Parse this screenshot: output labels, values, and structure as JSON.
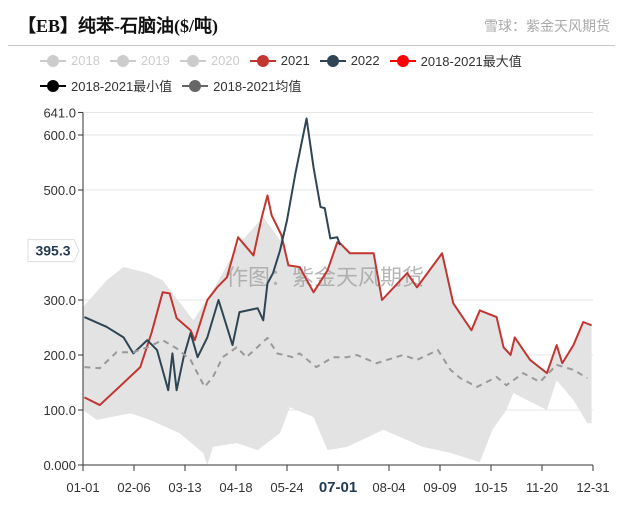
{
  "title": "【EB】纯苯-石脑油($/吨)",
  "legend": [
    {
      "label": "2018",
      "color": "#cccccc",
      "off": true
    },
    {
      "label": "2019",
      "color": "#cccccc",
      "off": true
    },
    {
      "label": "2020",
      "color": "#cccccc",
      "off": true
    },
    {
      "label": "2021",
      "color": "#c23531",
      "off": false
    },
    {
      "label": "2022",
      "color": "#2f4554",
      "off": false
    },
    {
      "label": "2018-2021最大值",
      "color": "#ff0000",
      "off": false
    },
    {
      "label": "2018-2021最小值",
      "color": "#000000",
      "off": false
    },
    {
      "label": "2018-2021均值",
      "color": "#666666",
      "off": false
    }
  ],
  "watermark": "作图：紫金天风期货",
  "corner_watermark": "雪球：紫金天风期货",
  "chart_data": {
    "type": "line",
    "title": "【EB】纯苯-石脑油($/吨)",
    "ylim": [
      0,
      641
    ],
    "y_ticks": [
      "0.000",
      "100.0",
      "200.0",
      "300.0",
      "500.0",
      "600.0",
      "641.0"
    ],
    "y_tick_values": [
      0,
      100,
      200,
      300,
      500,
      600,
      641
    ],
    "x_ticks": [
      "01-01",
      "02-06",
      "03-13",
      "04-18",
      "05-24",
      "07-01",
      "08-04",
      "09-09",
      "10-15",
      "11-20",
      "12-31"
    ],
    "highlight_x_tick": "07-01",
    "axis_pointer_value": "395.3",
    "grid": true,
    "legend_position": "top",
    "series": [
      {
        "name": "2021",
        "color": "#c23531",
        "points": [
          [
            1,
            123
          ],
          [
            12,
            109
          ],
          [
            26,
            142
          ],
          [
            41,
            178
          ],
          [
            49,
            240
          ],
          [
            57,
            314
          ],
          [
            62,
            312
          ],
          [
            67,
            267
          ],
          [
            77,
            245
          ],
          [
            80,
            227
          ],
          [
            89,
            300
          ],
          [
            96,
            323
          ],
          [
            103,
            341
          ],
          [
            111,
            414
          ],
          [
            122,
            381
          ],
          [
            128,
            451
          ],
          [
            132,
            490
          ],
          [
            135,
            454
          ],
          [
            142,
            418
          ],
          [
            147,
            363
          ],
          [
            155,
            360
          ],
          [
            165,
            314
          ],
          [
            175,
            354
          ],
          [
            182,
            405
          ],
          [
            191,
            385
          ],
          [
            184,
            403
          ],
          [
            208,
            385
          ],
          [
            214,
            300
          ],
          [
            232,
            349
          ],
          [
            239,
            323
          ],
          [
            257,
            385
          ],
          [
            265,
            294
          ],
          [
            278,
            245
          ],
          [
            284,
            281
          ],
          [
            296,
            269
          ],
          [
            301,
            214
          ],
          [
            306,
            200
          ],
          [
            309,
            232
          ],
          [
            320,
            191
          ],
          [
            332,
            167
          ],
          [
            339,
            218
          ],
          [
            343,
            185
          ],
          [
            351,
            218
          ],
          [
            358,
            260
          ],
          [
            364,
            254
          ]
        ]
      },
      {
        "name": "2022",
        "color": "#2f4554",
        "points": [
          [
            1,
            269
          ],
          [
            17,
            251
          ],
          [
            29,
            232
          ],
          [
            36,
            203
          ],
          [
            46,
            227
          ],
          [
            53,
            209
          ],
          [
            61,
            136
          ],
          [
            64,
            203
          ],
          [
            67,
            136
          ],
          [
            72,
            196
          ],
          [
            77,
            240
          ],
          [
            82,
            196
          ],
          [
            89,
            232
          ],
          [
            97,
            300
          ],
          [
            103,
            251
          ],
          [
            107,
            218
          ],
          [
            112,
            278
          ],
          [
            125,
            285
          ],
          [
            129,
            263
          ],
          [
            132,
            330
          ],
          [
            136,
            349
          ],
          [
            141,
            390
          ],
          [
            146,
            445
          ],
          [
            152,
            530
          ],
          [
            160,
            630
          ],
          [
            165,
            541
          ],
          [
            170,
            469
          ],
          [
            173,
            467
          ],
          [
            177,
            412
          ],
          [
            182,
            414
          ],
          [
            184,
            400
          ]
        ]
      },
      {
        "name": "2018-2021均值",
        "color": "#999999",
        "dashed": true,
        "points": [
          [
            1,
            178
          ],
          [
            12,
            176
          ],
          [
            24,
            205
          ],
          [
            36,
            205
          ],
          [
            46,
            214
          ],
          [
            57,
            227
          ],
          [
            67,
            212
          ],
          [
            77,
            191
          ],
          [
            87,
            142
          ],
          [
            93,
            160
          ],
          [
            100,
            196
          ],
          [
            110,
            214
          ],
          [
            117,
            196
          ],
          [
            132,
            231
          ],
          [
            139,
            203
          ],
          [
            150,
            196
          ],
          [
            155,
            203
          ],
          [
            167,
            178
          ],
          [
            179,
            196
          ],
          [
            189,
            196
          ],
          [
            196,
            200
          ],
          [
            210,
            185
          ],
          [
            229,
            200
          ],
          [
            239,
            191
          ],
          [
            254,
            209
          ],
          [
            263,
            173
          ],
          [
            270,
            158
          ],
          [
            282,
            142
          ],
          [
            296,
            160
          ],
          [
            303,
            145
          ],
          [
            315,
            167
          ],
          [
            327,
            151
          ],
          [
            339,
            182
          ],
          [
            351,
            173
          ],
          [
            361,
            158
          ]
        ]
      }
    ],
    "band": {
      "name": "2018-2021最大值/最小值",
      "color": "#e3e3e3",
      "upper": [
        [
          0,
          287
        ],
        [
          17,
          336
        ],
        [
          29,
          360
        ],
        [
          46,
          349
        ],
        [
          57,
          336
        ],
        [
          79,
          263
        ],
        [
          93,
          318
        ],
        [
          112,
          403
        ],
        [
          129,
          451
        ],
        [
          141,
          409
        ],
        [
          142,
          418
        ],
        [
          147,
          363
        ],
        [
          155,
          360
        ],
        [
          165,
          314
        ],
        [
          175,
          354
        ],
        [
          182,
          405
        ],
        [
          191,
          385
        ],
        [
          208,
          385
        ],
        [
          214,
          300
        ],
        [
          232,
          349
        ],
        [
          239,
          323
        ],
        [
          257,
          385
        ],
        [
          265,
          294
        ],
        [
          278,
          245
        ],
        [
          284,
          281
        ],
        [
          296,
          269
        ],
        [
          301,
          214
        ],
        [
          306,
          205
        ],
        [
          309,
          232
        ],
        [
          320,
          191
        ],
        [
          332,
          167
        ],
        [
          339,
          218
        ],
        [
          343,
          185
        ],
        [
          351,
          218
        ],
        [
          358,
          260
        ],
        [
          364,
          254
        ]
      ],
      "lower": [
        [
          0,
          100
        ],
        [
          10,
          82
        ],
        [
          34,
          94
        ],
        [
          48,
          82
        ],
        [
          69,
          58
        ],
        [
          86,
          22
        ],
        [
          89,
          0
        ],
        [
          93,
          33
        ],
        [
          110,
          40
        ],
        [
          125,
          27
        ],
        [
          141,
          58
        ],
        [
          148,
          105
        ],
        [
          165,
          87
        ],
        [
          175,
          27
        ],
        [
          189,
          33
        ],
        [
          215,
          64
        ],
        [
          243,
          33
        ],
        [
          263,
          22
        ],
        [
          284,
          5
        ],
        [
          293,
          64
        ],
        [
          303,
          100
        ],
        [
          308,
          131
        ],
        [
          318,
          118
        ],
        [
          332,
          100
        ],
        [
          339,
          154
        ],
        [
          351,
          118
        ],
        [
          361,
          76
        ],
        [
          364,
          76
        ]
      ]
    }
  }
}
